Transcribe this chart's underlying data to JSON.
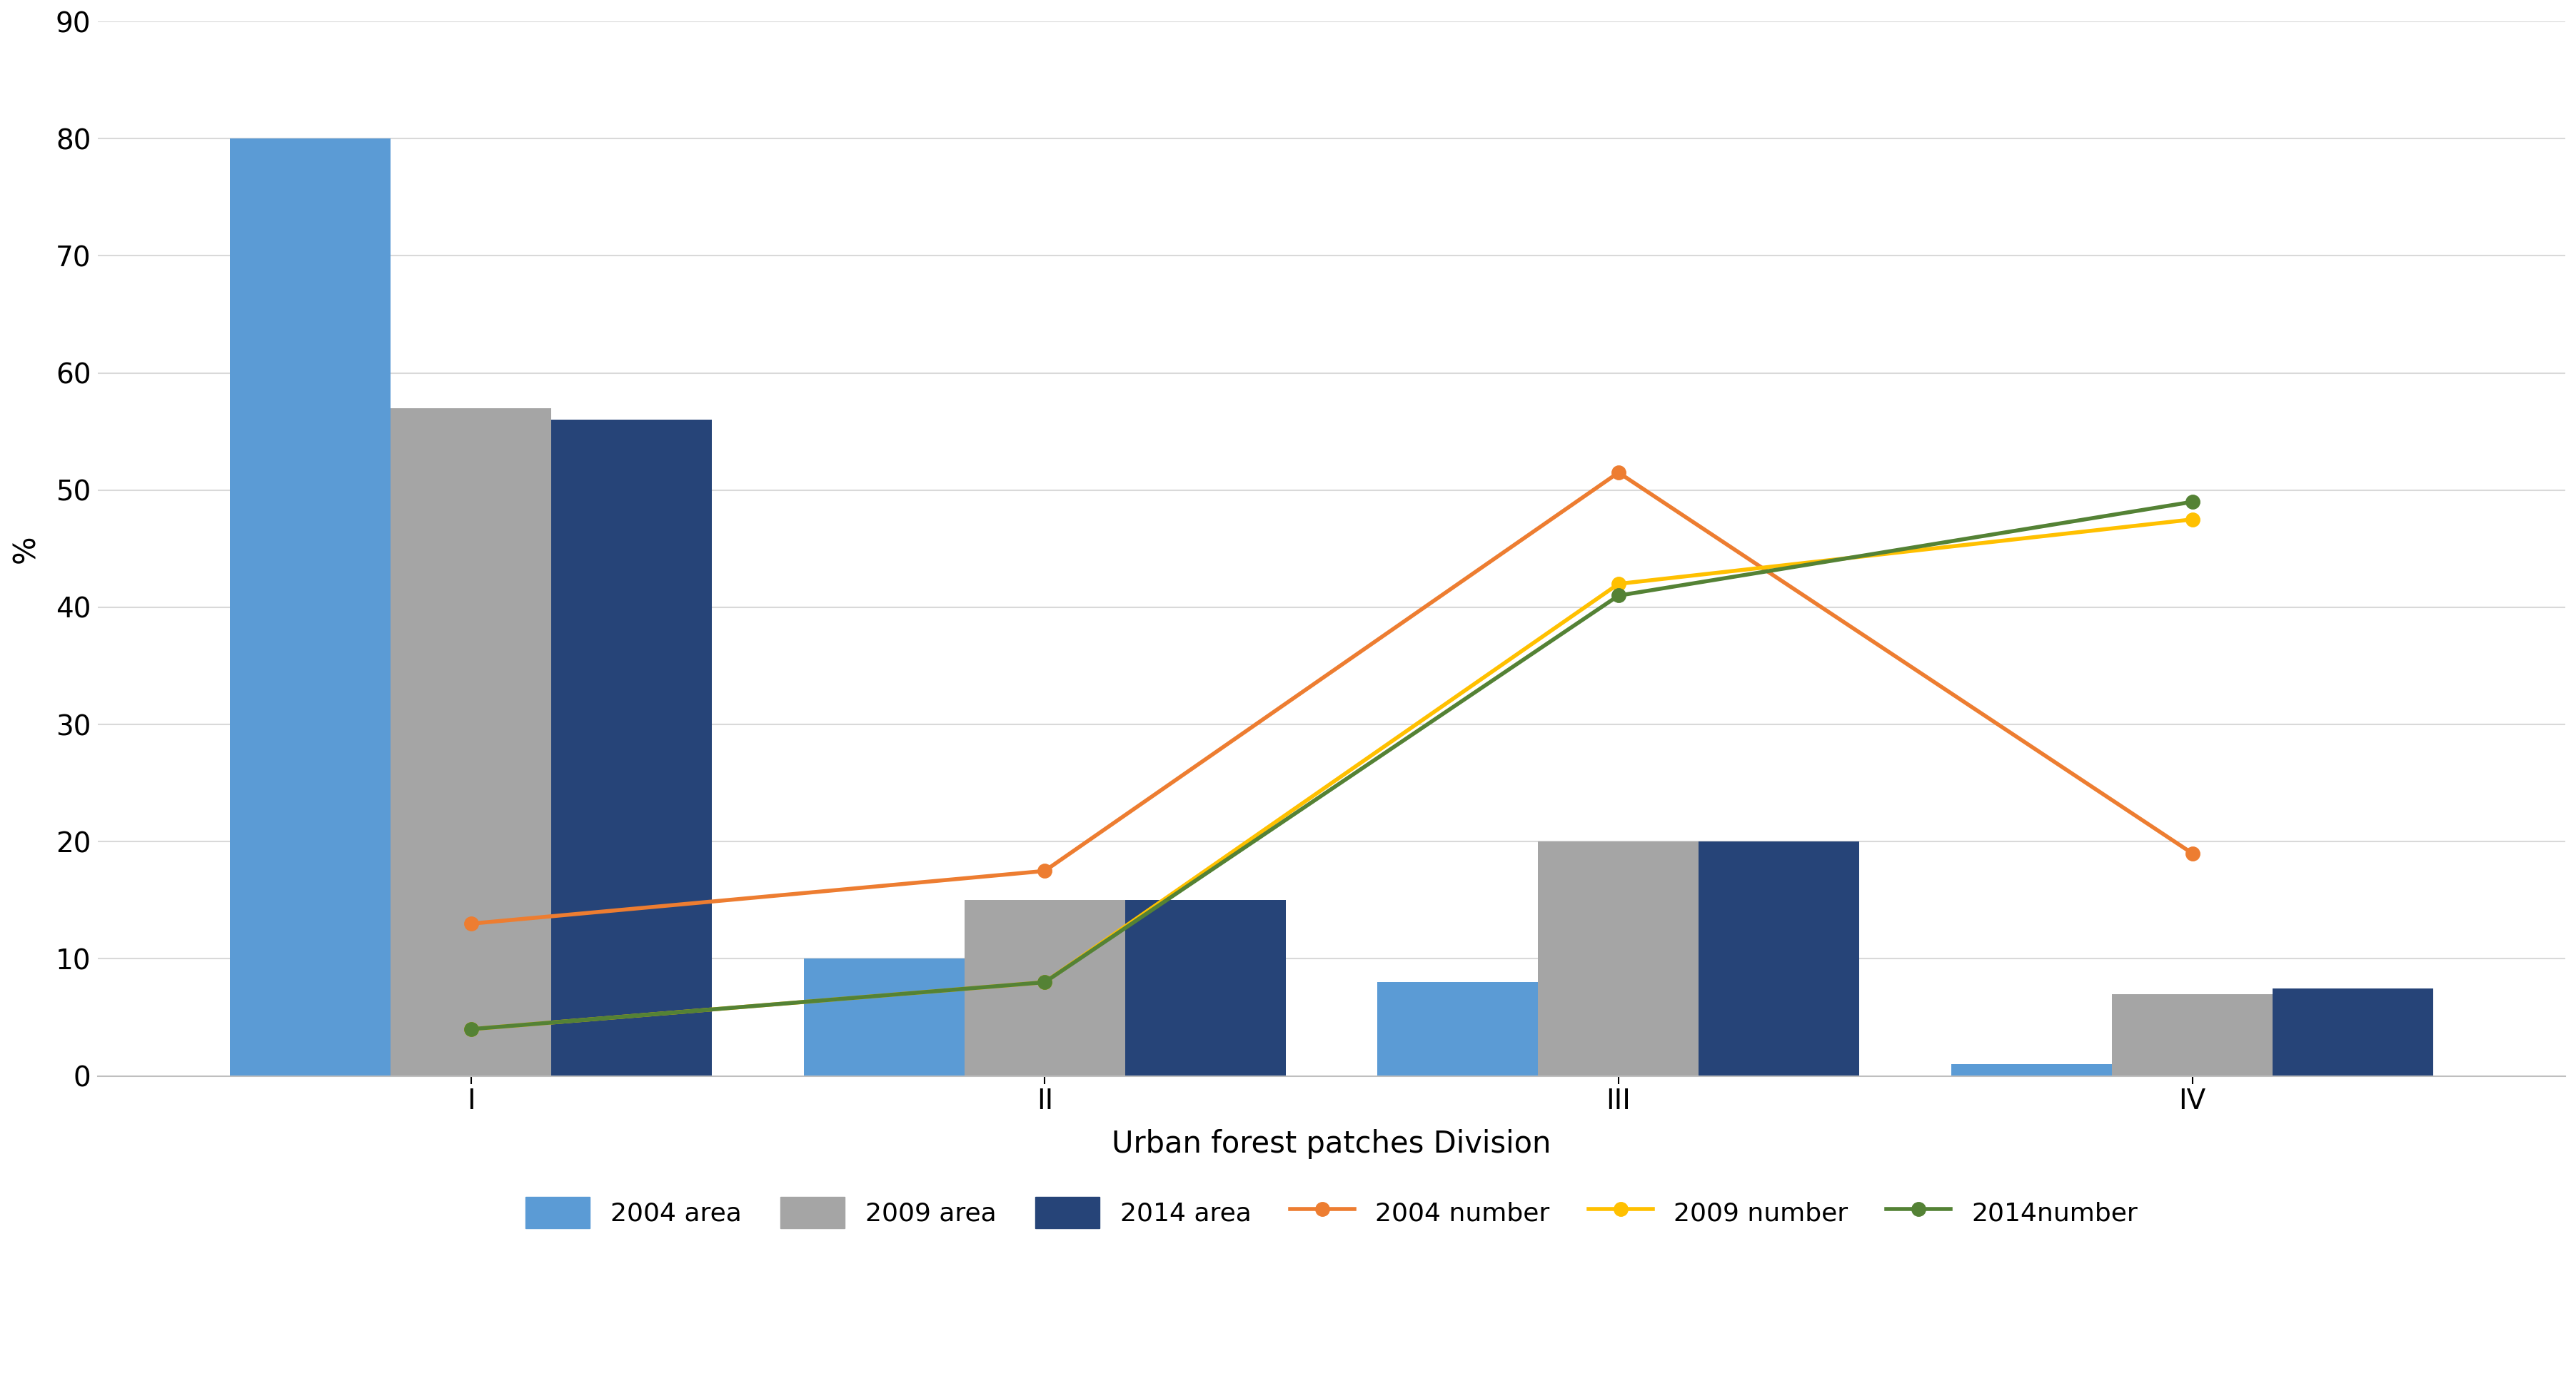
{
  "categories": [
    "I",
    "II",
    "III",
    "IV"
  ],
  "bar_2004_area": [
    80,
    10,
    8,
    1
  ],
  "bar_2009_area": [
    57,
    15,
    20,
    7
  ],
  "bar_2014_area": [
    56,
    15,
    20,
    7.5
  ],
  "line_2004_number": [
    13,
    17.5,
    51.5,
    19
  ],
  "line_2009_number": [
    4,
    8,
    42,
    47.5
  ],
  "line_2014_number": [
    4,
    8,
    41,
    49
  ],
  "bar_color_2004": "#5B9BD5",
  "bar_color_2009": "#A5A5A5",
  "bar_color_2014": "#264478",
  "line_color_2004": "#ED7D31",
  "line_color_2009": "#FFC000",
  "line_color_2014": "#548235",
  "ylabel": "%",
  "xlabel": "Urban forest patches Division",
  "ylim": [
    0,
    90
  ],
  "yticks": [
    0,
    10,
    20,
    30,
    40,
    50,
    60,
    70,
    80,
    90
  ],
  "legend_labels": [
    "2004 area",
    "2009 area",
    "2014 area",
    "2004 number",
    "2009 number",
    "2014number"
  ],
  "background_color": "#FFFFFF",
  "grid_color": "#D9D9D9",
  "bar_width": 0.28,
  "marker": "o",
  "marker_size": 14,
  "line_width": 4.0,
  "tick_fontsize": 28,
  "label_fontsize": 30,
  "legend_fontsize": 26
}
